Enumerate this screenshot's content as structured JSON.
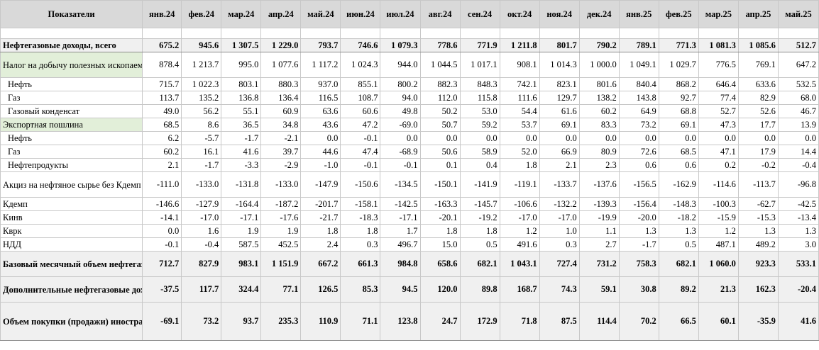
{
  "table": {
    "header_label": "Показатели",
    "months": [
      "янв.24",
      "фев.24",
      "мар.24",
      "апр.24",
      "май.24",
      "июн.24",
      "июл.24",
      "авг.24",
      "сен.24",
      "окт.24",
      "ноя.24",
      "дек.24",
      "янв.25",
      "фев.25",
      "мар.25",
      "апр.25",
      "май.25"
    ],
    "rows": [
      {
        "label": "Нефтегазовые доходы, всего",
        "style": "bold shade top bot",
        "h": 18,
        "values": [
          "675.2",
          "945.6",
          "1 307.5",
          "1 229.0",
          "793.7",
          "746.6",
          "1 079.3",
          "778.6",
          "771.9",
          "1 211.8",
          "801.7",
          "790.2",
          "789.1",
          "771.3",
          "1 081.3",
          "1 085.6",
          "512.7"
        ]
      },
      {
        "label": "Налог на добычу полезных ископаемых",
        "style": "hl",
        "h": 36,
        "values": [
          "878.4",
          "1 213.7",
          "995.0",
          "1 077.6",
          "1 117.2",
          "1 024.3",
          "944.0",
          "1 044.5",
          "1 017.1",
          "908.1",
          "1 014.3",
          "1 000.0",
          "1 049.1",
          "1 029.7",
          "776.5",
          "769.1",
          "647.2"
        ]
      },
      {
        "label": "Нефть",
        "style": "indent",
        "h": 18,
        "values": [
          "715.7",
          "1 022.3",
          "803.1",
          "880.3",
          "937.0",
          "855.1",
          "800.2",
          "882.3",
          "848.3",
          "742.1",
          "823.1",
          "801.6",
          "840.4",
          "868.2",
          "646.4",
          "633.6",
          "532.5"
        ]
      },
      {
        "label": "Газ",
        "style": "indent",
        "h": 18,
        "values": [
          "113.7",
          "135.2",
          "136.8",
          "136.4",
          "116.5",
          "108.7",
          "94.0",
          "112.0",
          "115.8",
          "111.6",
          "129.7",
          "138.2",
          "143.8",
          "92.7",
          "77.4",
          "82.9",
          "68.0"
        ]
      },
      {
        "label": "Газовый конденсат",
        "style": "indent",
        "h": 18,
        "values": [
          "49.0",
          "56.2",
          "55.1",
          "60.9",
          "63.6",
          "60.6",
          "49.8",
          "50.2",
          "53.0",
          "54.4",
          "61.6",
          "60.2",
          "64.9",
          "68.8",
          "52.7",
          "52.6",
          "46.7"
        ]
      },
      {
        "label": "Экспортная пошлина",
        "style": "hl",
        "h": 18,
        "values": [
          "68.5",
          "8.6",
          "36.5",
          "34.8",
          "43.6",
          "47.2",
          "-69.0",
          "50.7",
          "59.2",
          "53.7",
          "69.1",
          "83.3",
          "73.2",
          "69.1",
          "47.3",
          "17.7",
          "13.9"
        ]
      },
      {
        "label": "Нефть",
        "style": "indent",
        "h": 18,
        "values": [
          "6.2",
          "-5.7",
          "-1.7",
          "-2.1",
          "0.0",
          "-0.1",
          "0.0",
          "0.0",
          "0.0",
          "0.0",
          "0.0",
          "0.0",
          "0.0",
          "0.0",
          "0.0",
          "0.0",
          "0.0"
        ]
      },
      {
        "label": "Газ",
        "style": "indent",
        "h": 18,
        "values": [
          "60.2",
          "16.1",
          "41.6",
          "39.7",
          "44.6",
          "47.4",
          "-68.9",
          "50.6",
          "58.9",
          "52.0",
          "66.9",
          "80.9",
          "72.6",
          "68.5",
          "47.1",
          "17.9",
          "14.4"
        ]
      },
      {
        "label": "Нефтепродукты",
        "style": "indent",
        "h": 18,
        "values": [
          "2.1",
          "-1.7",
          "-3.3",
          "-2.9",
          "-1.0",
          "-0.1",
          "-0.1",
          "0.1",
          "0.4",
          "1.8",
          "2.1",
          "2.3",
          "0.6",
          "0.6",
          "0.2",
          "-0.2",
          "-0.4"
        ]
      },
      {
        "label": "Акциз на нефтяное сырье без Кдемп и Кинв*",
        "style": "",
        "h": 36,
        "values": [
          "-111.0",
          "-133.0",
          "-131.8",
          "-133.0",
          "-147.9",
          "-150.6",
          "-134.5",
          "-150.1",
          "-141.9",
          "-119.1",
          "-133.7",
          "-137.6",
          "-156.5",
          "-162.9",
          "-114.6",
          "-113.7",
          "-96.8"
        ]
      },
      {
        "label": "Кдемп",
        "style": "",
        "h": 18,
        "values": [
          "-146.6",
          "-127.9",
          "-164.4",
          "-187.2",
          "-201.7",
          "-158.1",
          "-142.5",
          "-163.3",
          "-145.7",
          "-106.6",
          "-132.2",
          "-139.3",
          "-156.4",
          "-148.3",
          "-100.3",
          "-62.7",
          "-42.5"
        ]
      },
      {
        "label": "Кинв",
        "style": "",
        "h": 18,
        "values": [
          "-14.1",
          "-17.0",
          "-17.1",
          "-17.6",
          "-21.7",
          "-18.3",
          "-17.1",
          "-20.1",
          "-19.2",
          "-17.0",
          "-17.0",
          "-19.9",
          "-20.0",
          "-18.2",
          "-15.9",
          "-15.3",
          "-13.4"
        ]
      },
      {
        "label": "Кврк",
        "style": "",
        "h": 18,
        "values": [
          "0.0",
          "1.6",
          "1.9",
          "1.9",
          "1.8",
          "1.8",
          "1.7",
          "1.8",
          "1.8",
          "1.2",
          "1.0",
          "1.1",
          "1.3",
          "1.3",
          "1.2",
          "1.3",
          "1.3"
        ]
      },
      {
        "label": "НДД",
        "style": "",
        "h": 18,
        "values": [
          "-0.1",
          "-0.4",
          "587.5",
          "452.5",
          "2.4",
          "0.3",
          "496.7",
          "15.0",
          "0.5",
          "491.6",
          "0.3",
          "2.7",
          "-1.7",
          "0.5",
          "487.1",
          "489.2",
          "3.0"
        ]
      },
      {
        "label": "Базовый месячный объем нефтегазовых доходов",
        "style": "bold shade top",
        "h": 36,
        "values": [
          "712.7",
          "827.9",
          "983.1",
          "1 151.9",
          "667.2",
          "661.3",
          "984.8",
          "658.6",
          "682.1",
          "1 043.1",
          "727.4",
          "731.2",
          "758.3",
          "682.1",
          "1 060.0",
          "923.3",
          "533.1"
        ]
      },
      {
        "label": "Дополнительные нефтегазовые доходы",
        "style": "bold shade",
        "h": 36,
        "values": [
          "-37.5",
          "117.7",
          "324.4",
          "77.1",
          "126.5",
          "85.3",
          "94.5",
          "120.0",
          "89.8",
          "168.7",
          "74.3",
          "59.1",
          "30.8",
          "89.2",
          "21.3",
          "162.3",
          "-20.4"
        ]
      },
      {
        "label": "Объем покупки (продажи) иностранной валюты и золота**",
        "style": "bold shade bot",
        "h": 54,
        "values": [
          "-69.1",
          "73.2",
          "93.7",
          "235.3",
          "110.9",
          "71.1",
          "123.8",
          "24.7",
          "172.9",
          "71.8",
          "87.5",
          "114.4",
          "70.2",
          "66.5",
          "60.1",
          "-35.9",
          "41.6"
        ]
      }
    ]
  }
}
